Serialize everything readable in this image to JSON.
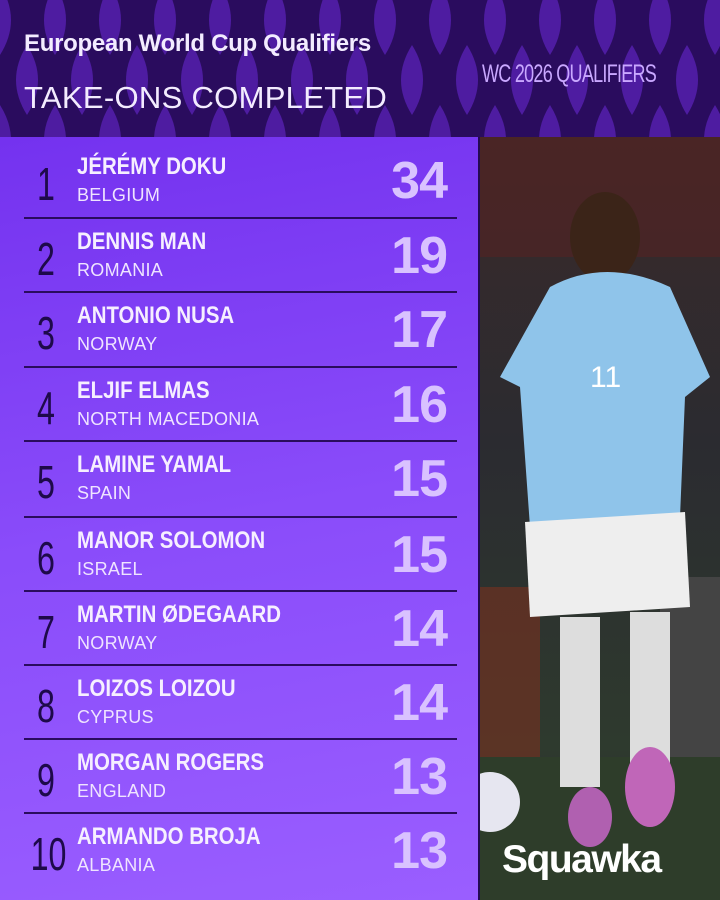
{
  "header": {
    "title": "European World Cup Qualifiers",
    "subtitle": "TAKE-ONS COMPLETED",
    "badge": "WC 2026 QUALIFIERS"
  },
  "colors": {
    "header_bg": "#2a0c5e",
    "panel_start": "#7432ef",
    "panel_end": "#9a5eff",
    "value": "#d9c2ff"
  },
  "rows": [
    {
      "rank": "1",
      "name": "JÉRÉMY DOKU",
      "country": "BELGIUM",
      "value": "34"
    },
    {
      "rank": "2",
      "name": "DENNIS MAN",
      "country": "ROMANIA",
      "value": "19"
    },
    {
      "rank": "3",
      "name": "ANTONIO NUSA",
      "country": "NORWAY",
      "value": "17"
    },
    {
      "rank": "4",
      "name": "ELJIF ELMAS",
      "country": "NORTH MACEDONIA",
      "value": "16"
    },
    {
      "rank": "5",
      "name": "LAMINE YAMAL",
      "country": "SPAIN",
      "value": "15"
    },
    {
      "rank": "6",
      "name": "MANOR SOLOMON",
      "country": "ISRAEL",
      "value": "15"
    },
    {
      "rank": "7",
      "name": "MARTIN ØDEGAARD",
      "country": "NORWAY",
      "value": "14"
    },
    {
      "rank": "8",
      "name": "LOIZOS LOIZOU",
      "country": "CYPRUS",
      "value": "14"
    },
    {
      "rank": "9",
      "name": "MORGAN ROGERS",
      "country": "ENGLAND",
      "value": "13"
    },
    {
      "rank": "10",
      "name": "ARMANDO BROJA",
      "country": "ALBANIA",
      "value": "13"
    }
  ],
  "photo": {
    "shirt_number": "11"
  },
  "brand": {
    "logo": "Squawka"
  }
}
